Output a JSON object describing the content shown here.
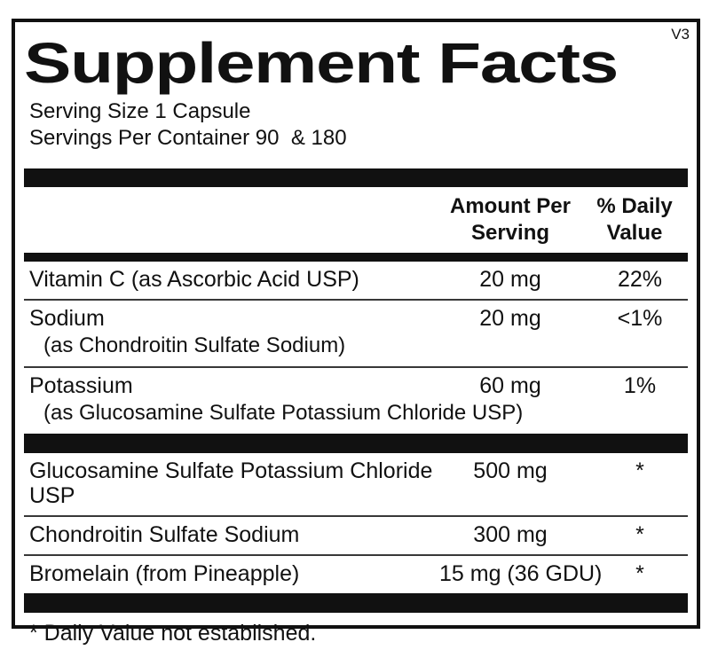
{
  "meta": {
    "version_tag": "V3"
  },
  "title": "Supplement Facts",
  "serving_info": {
    "serving_size": "Serving Size 1 Capsule",
    "servings_per_container": "Servings Per Container 90  & 180"
  },
  "columns": {
    "amount_header": "Amount Per\nServing",
    "dv_header": "% Daily\nValue"
  },
  "nutrients": {
    "rows": [
      {
        "name": "Vitamin C (as Ascorbic Acid USP)",
        "subname": "",
        "amount": "20 mg",
        "dv": "22%"
      },
      {
        "name": "Sodium",
        "subname": "(as Chondroitin Sulfate Sodium)",
        "amount": "20 mg",
        "dv": "<1%"
      },
      {
        "name": "Potassium",
        "subname": "(as Glucosamine Sulfate Potassium Chloride USP)",
        "amount": "60 mg",
        "dv": "1%"
      }
    ]
  },
  "ingredients": {
    "rows": [
      {
        "name": "Glucosamine Sulfate Potassium Chloride USP",
        "amount": "500 mg",
        "dv": "*"
      },
      {
        "name": "Chondroitin Sulfate Sodium",
        "amount": "300 mg",
        "dv": "*"
      },
      {
        "name": "Bromelain (from Pineapple)",
        "amount": "15 mg (36 GDU)",
        "dv": "*"
      }
    ]
  },
  "footnote": "* Daily Value not established.",
  "colors": {
    "ink": "#111111",
    "divider": "#383838",
    "background": "#ffffff"
  }
}
